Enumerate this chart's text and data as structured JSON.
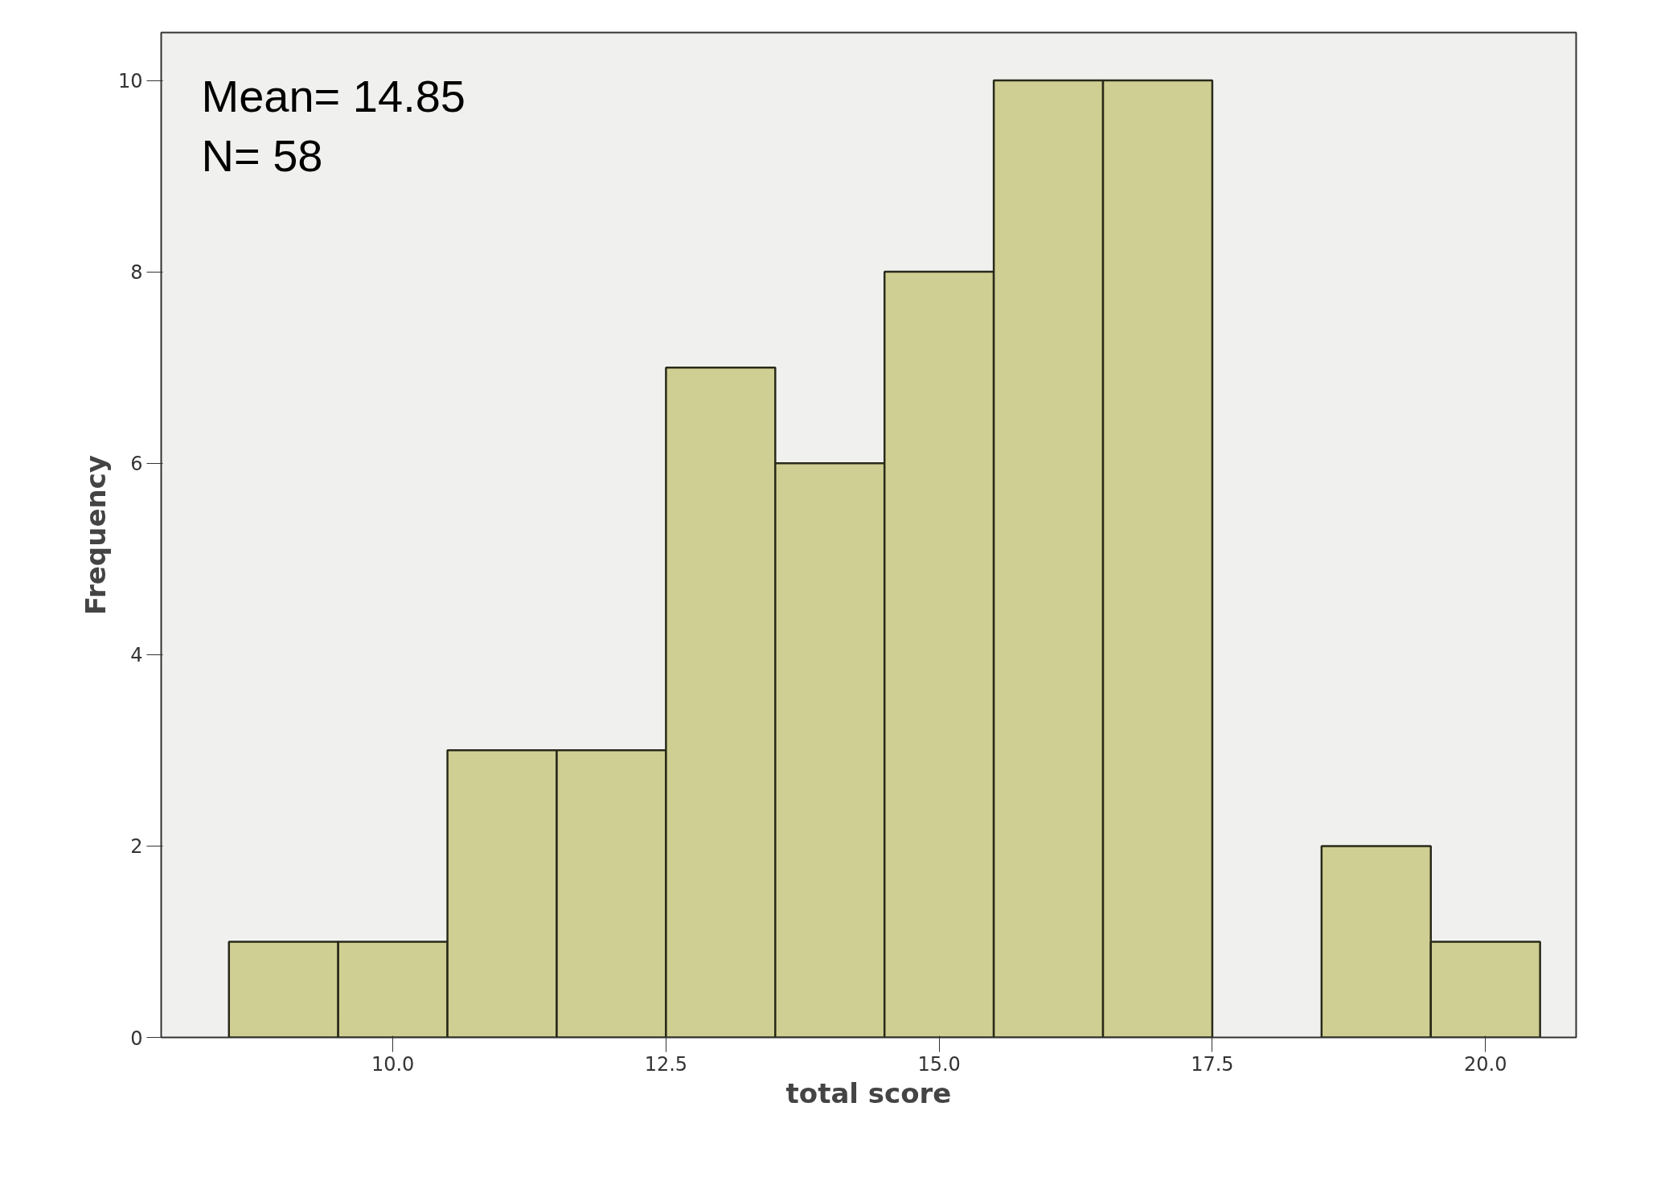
{
  "chart_data": {
    "type": "histogram",
    "xlabel": "total score",
    "ylabel": "Frequency",
    "bins": [
      8.5,
      9.5,
      10.5,
      11.5,
      12.5,
      13.5,
      14.5,
      15.5,
      16.5,
      17.5,
      18.5,
      19.5,
      20.5
    ],
    "values": [
      1,
      1,
      3,
      3,
      7,
      6,
      8,
      10,
      10,
      0,
      2,
      1
    ],
    "color": "#cfcf93",
    "xlim": [
      7.88,
      20.83
    ],
    "ylim": [
      0,
      10.5
    ],
    "xticks": [
      {
        "value": 10,
        "label": "10.0"
      },
      {
        "value": 12.5,
        "label": "12.5"
      },
      {
        "value": 15,
        "label": "15.0"
      },
      {
        "value": 17.5,
        "label": "17.5"
      },
      {
        "value": 20,
        "label": "20.0"
      }
    ],
    "yticks": [
      0,
      2,
      4,
      6,
      8,
      10
    ],
    "grid": false,
    "annotations": [
      "Mean= 14.85",
      "N= 58"
    ]
  }
}
